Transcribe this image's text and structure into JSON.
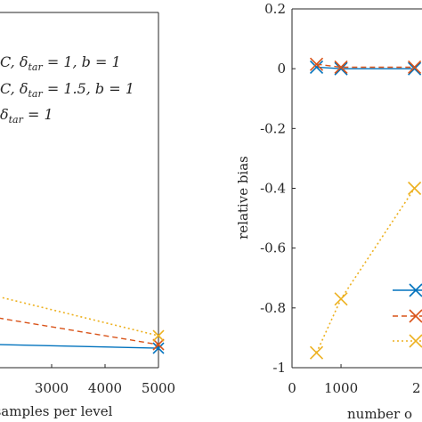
{
  "chart_data": [
    {
      "type": "line",
      "title": "",
      "xlabel": "samples per level",
      "ylabel": "",
      "xlim": [
        2000,
        5000
      ],
      "xticks": [
        3000,
        4000,
        5000
      ],
      "grid": false,
      "legend_entries": [
        "C, δtar = 1, b = 1",
        "C, δtar = 1.5, b = 1",
        "δtar = 1"
      ],
      "legend_placement": "top-left",
      "series": [
        {
          "color": "#0072BD",
          "style": "solid",
          "x": [
            2000,
            5000
          ],
          "y_frac": [
            0.935,
            0.945
          ]
        },
        {
          "color": "#D95319",
          "style": "dashed",
          "x": [
            2000,
            5000
          ],
          "y_frac": [
            0.86,
            0.935
          ]
        },
        {
          "color": "#EDB120",
          "style": "dotted",
          "x": [
            2000,
            5000
          ],
          "y_frac": [
            0.8,
            0.91
          ]
        }
      ]
    },
    {
      "type": "line",
      "title": "",
      "xlabel": "number o",
      "ylabel": "relative bias",
      "xlim": [
        0,
        2500
      ],
      "ylim": [
        -1,
        0.2
      ],
      "xticks": [
        0,
        1000
      ],
      "yticks": [
        0.2,
        0,
        -0.2,
        -0.4,
        -0.6,
        -0.8,
        -1
      ],
      "x_tick_partial": "2",
      "grid": false,
      "legend_placement": "bottom-right",
      "series": [
        {
          "color": "#0072BD",
          "style": "solid",
          "marker": "x",
          "x": [
            500,
            1000,
            2500
          ],
          "y": [
            0.005,
            0.0,
            0.0
          ]
        },
        {
          "color": "#D95319",
          "style": "dashed",
          "marker": "x",
          "x": [
            500,
            1000,
            2500
          ],
          "y": [
            0.015,
            0.005,
            0.005
          ]
        },
        {
          "color": "#EDB120",
          "style": "dotted",
          "marker": "x",
          "x": [
            500,
            1000,
            2500
          ],
          "y": [
            -0.95,
            -0.77,
            -0.4
          ]
        }
      ]
    }
  ]
}
